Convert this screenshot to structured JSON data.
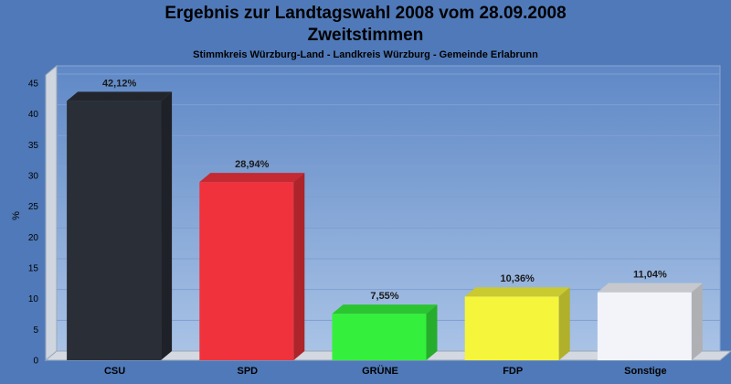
{
  "title": "Ergebnis zur Landtagswahl 2008 vom 28.09.2008",
  "subtitle": "Zweitstimmen",
  "caption": "Stimmkreis Würzburg-Land - Landkreis Würzburg - Gemeinde Erlabrunn",
  "chart_data": {
    "type": "bar",
    "title": "Ergebnis zur Landtagswahl 2008 vom 28.09.2008",
    "subtitle": "Zweitstimmen",
    "caption": "Stimmkreis Würzburg-Land - Landkreis Würzburg - Gemeinde Erlabrunn",
    "xlabel": "",
    "ylabel": "%",
    "ylim": [
      0,
      45
    ],
    "yticks": [
      0,
      5,
      10,
      15,
      20,
      25,
      30,
      35,
      40,
      45
    ],
    "grid": true,
    "categories": [
      "CSU",
      "SPD",
      "GRÜNE",
      "FDP",
      "Sonstige"
    ],
    "values": [
      42.12,
      28.94,
      7.55,
      10.36,
      11.04
    ],
    "value_labels": [
      "42,12%",
      "28,94%",
      "7,55%",
      "10,36%",
      "11,04%"
    ],
    "colors": {
      "CSU": "#2a2e36",
      "SPD": "#f0323c",
      "GRÜNE": "#34f03c",
      "FDP": "#f5f53c",
      "Sonstige": "#f2f4fa"
    }
  }
}
